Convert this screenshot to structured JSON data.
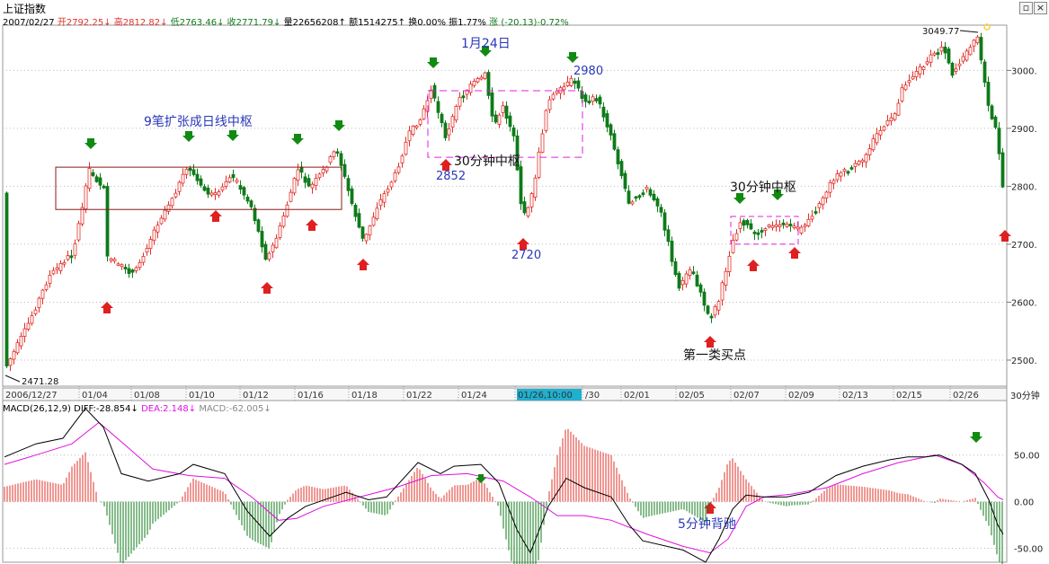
{
  "title": "上证指数",
  "quote": {
    "date": "2007/02/27",
    "open_label": "开",
    "open": "2792.25",
    "high_label": "高",
    "high": "2812.82",
    "low_label": "低",
    "low": "2763.46",
    "close_label": "收",
    "close": "2771.79",
    "volume_label": "量",
    "volume": "22656208",
    "amount_label": "额",
    "amount": "1514275",
    "turnover_label": "换",
    "turnover": "0.00%",
    "amplitude_label": "振",
    "amplitude": "1.77%",
    "change_label": "涨",
    "change": "(-20.13)-0.72%",
    "down_arrow": "↓",
    "up_arrow": "↑"
  },
  "macd_header": {
    "name": "MACD(26,12,9)",
    "diff_label": "DIFF:",
    "diff": "-28.854",
    "dea_label": "DEA:",
    "dea": "2.148",
    "macd_label": "MACD:",
    "macd": "-62.005"
  },
  "period_label": "30分钟",
  "colors": {
    "up": "#e0302a",
    "down": "#0f7a1a",
    "box_big": "#8b1a1a",
    "box_dash": "#e020e0",
    "diff_line": "#000000",
    "dea_line": "#e010e0",
    "annotation": "#2a38b8",
    "arrow_up": "#e02020",
    "arrow_down": "#108a10",
    "grid": "#bbbbbb",
    "highlight_date_bg": "#1fb0d0"
  },
  "chart_data": {
    "type": "candlestick",
    "timeframe": "30分钟",
    "ylim": [
      2455,
      3075
    ],
    "y_ticks": [
      "3000.",
      "2900.",
      "2800.",
      "2700.",
      "2600.",
      "2500."
    ],
    "x_tick_labels": [
      "2006/12/27",
      "01/04",
      "01/08",
      "01/10",
      "01/12",
      "01/16",
      "01/18",
      "01/22",
      "01/24",
      "01/26,10:00",
      "/30",
      "02/01",
      "02/05",
      "02/07",
      "02/09",
      "02/13",
      "02/15",
      "02/26"
    ],
    "highlighted_x_label": "01/26,10:00",
    "key_points": [
      {
        "label": "2471.28",
        "value": 2471.28
      },
      {
        "label": "2852",
        "value": 2852
      },
      {
        "label": "2980",
        "value": 2980
      },
      {
        "label": "2720",
        "value": 2720
      },
      {
        "label": "3049.77",
        "value": 3049.77
      }
    ],
    "annotations": [
      {
        "text": "9笔扩张成日线中枢"
      },
      {
        "text": "1月24日"
      },
      {
        "text": "30分钟中枢"
      },
      {
        "text": "30分钟中枢"
      },
      {
        "text": "第一类买点"
      },
      {
        "text": "5分钟背驰"
      }
    ],
    "macd": {
      "ylim": [
        -65,
        95
      ],
      "y_ticks": [
        "50.00",
        "0.00",
        "-50.00"
      ],
      "diff": -28.854,
      "dea": 2.148,
      "macd": -62.005
    }
  }
}
